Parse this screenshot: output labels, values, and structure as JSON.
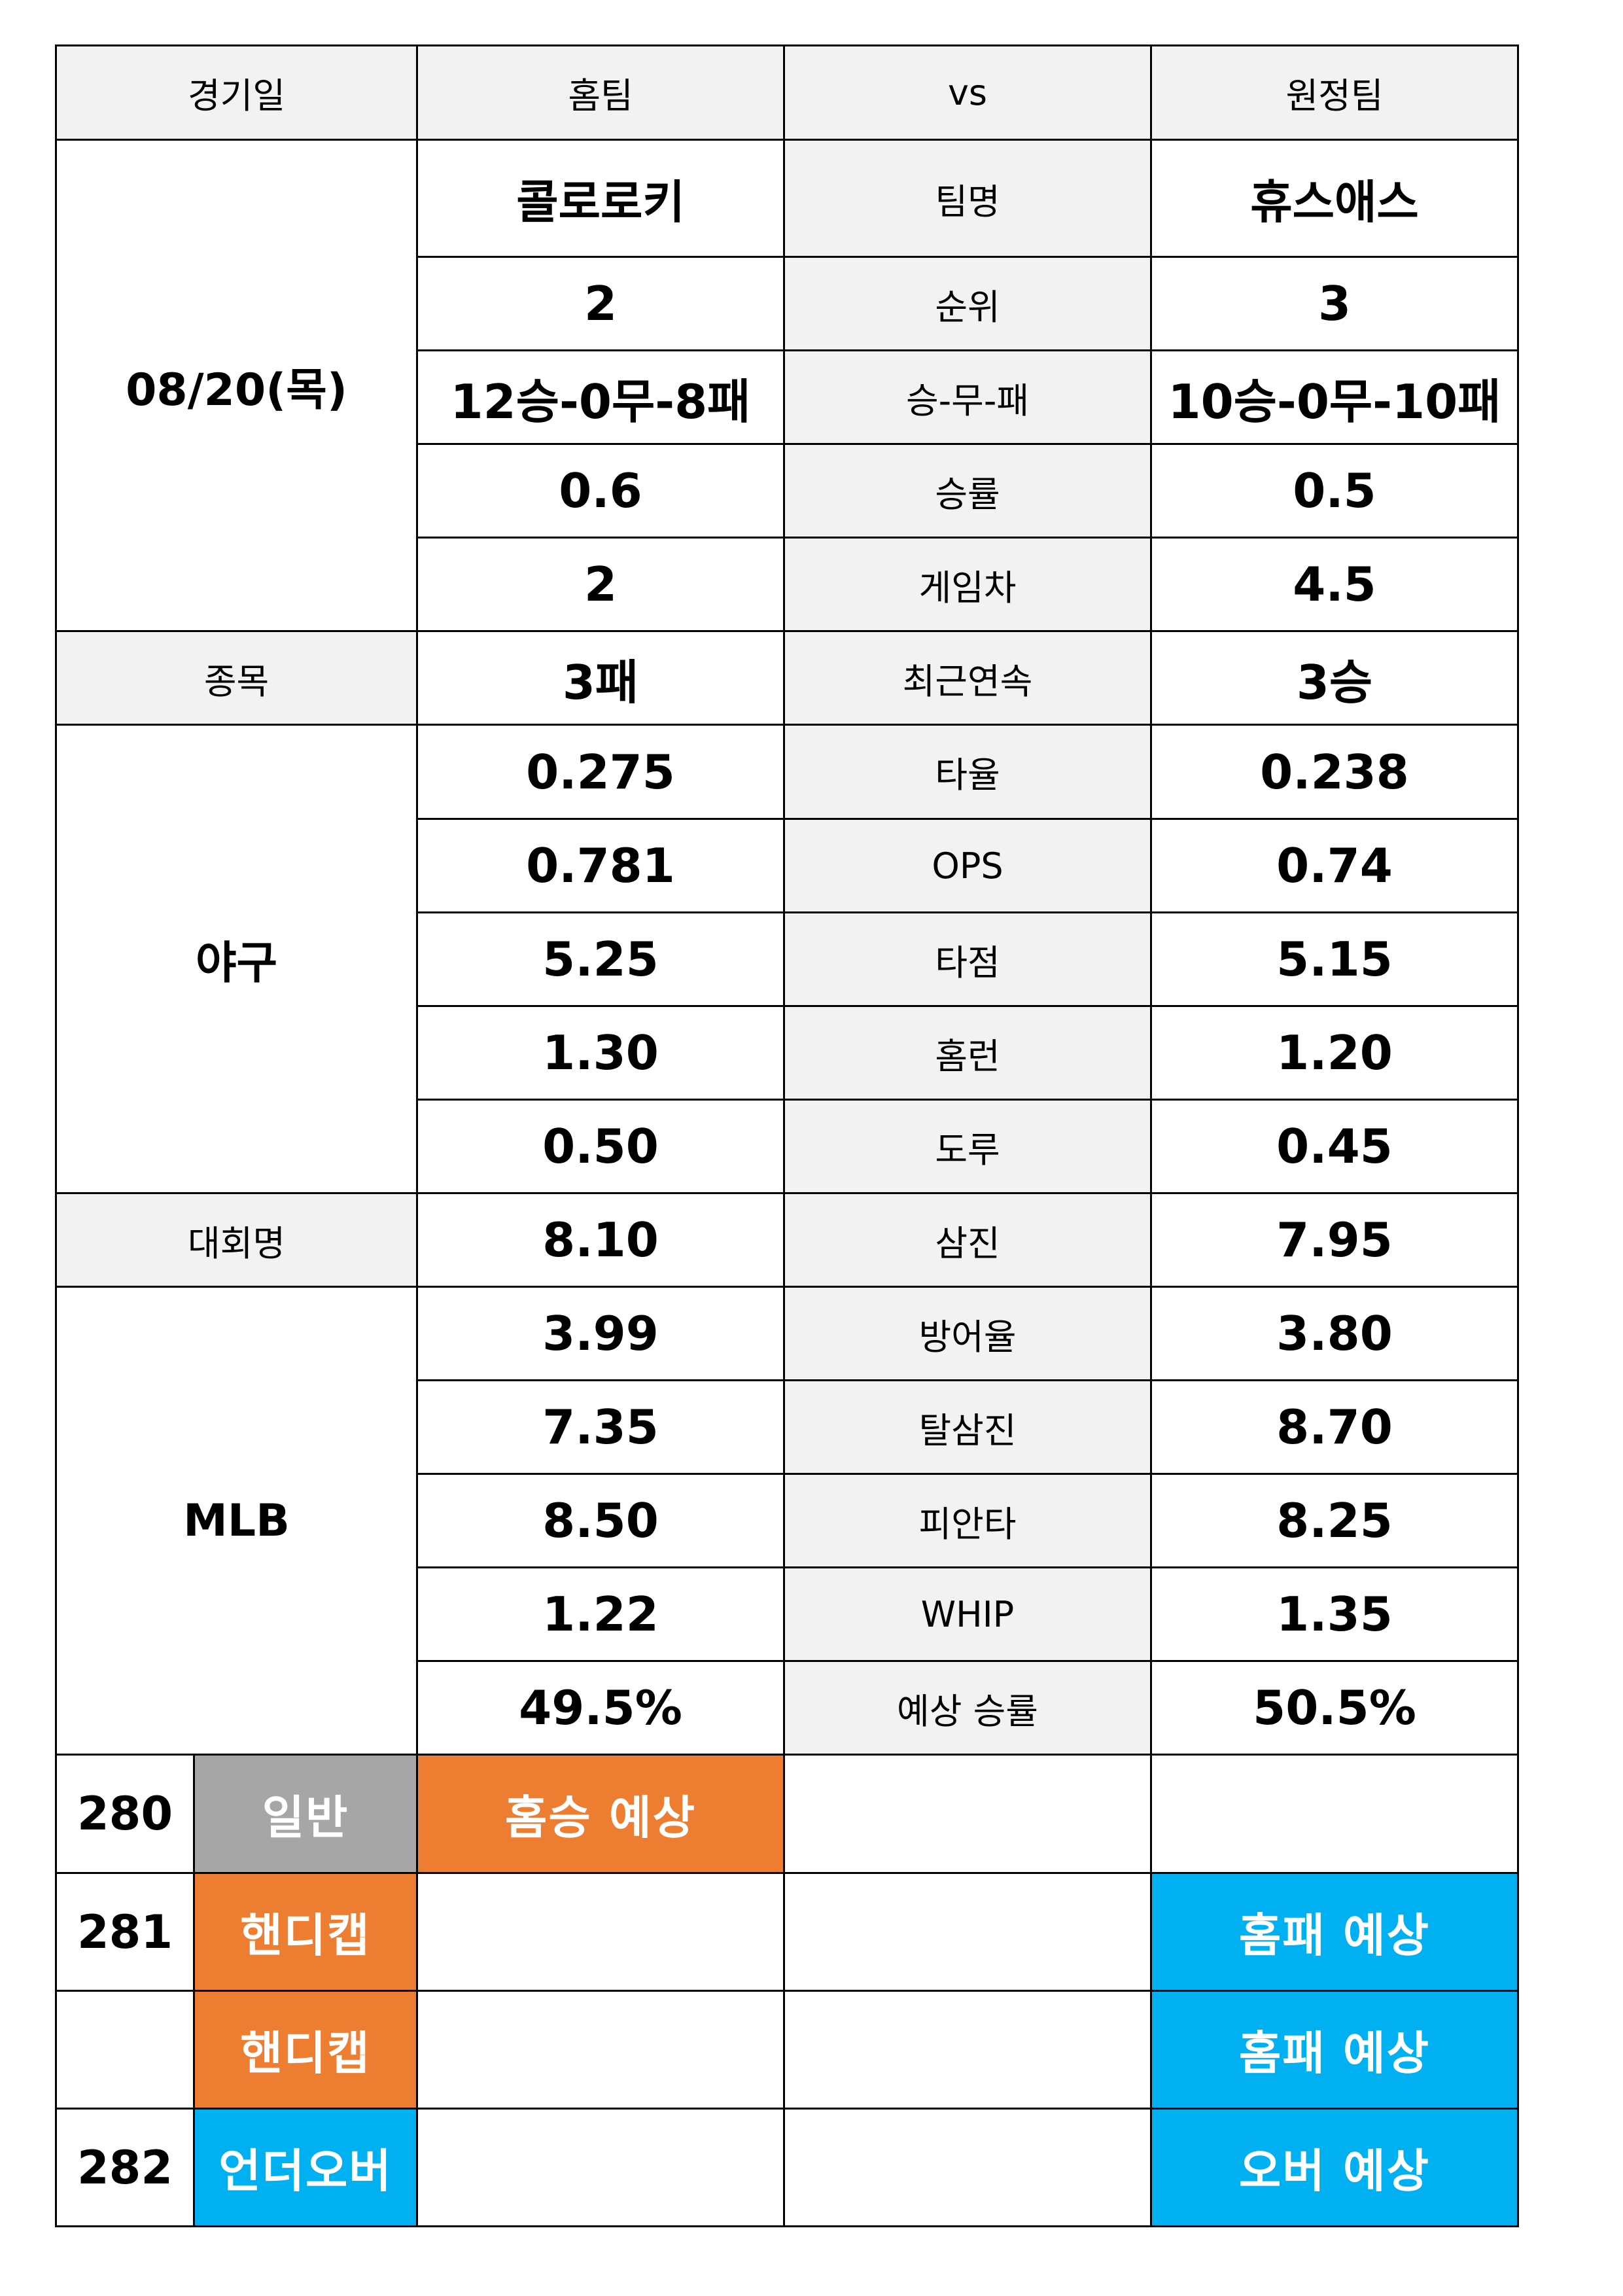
{
  "header": {
    "date_label": "경기일",
    "home_label": "홈팀",
    "vs_label": "vs",
    "away_label": "원정팀"
  },
  "match": {
    "date": "08/20(목)",
    "sport_label": "종목",
    "sport": "야구",
    "league_label": "대회명",
    "league": "MLB"
  },
  "stats": [
    {
      "label": "팀명",
      "home": "콜로로키",
      "away": "휴스애스"
    },
    {
      "label": "순위",
      "home": "2",
      "away": "3"
    },
    {
      "label": "승-무-패",
      "home": "12승-0무-8패",
      "away": "10승-0무-10패"
    },
    {
      "label": "승률",
      "home": "0.6",
      "away": "0.5"
    },
    {
      "label": "게임차",
      "home": "2",
      "away": "4.5"
    },
    {
      "label": "최근연속",
      "home": "3패",
      "away": "3승"
    },
    {
      "label": "타율",
      "home": "0.275",
      "away": "0.238"
    },
    {
      "label": "OPS",
      "home": "0.781",
      "away": "0.74"
    },
    {
      "label": "타점",
      "home": "5.25",
      "away": "5.15"
    },
    {
      "label": "홈런",
      "home": "1.30",
      "away": "1.20"
    },
    {
      "label": "도루",
      "home": "0.50",
      "away": "0.45"
    },
    {
      "label": "삼진",
      "home": "8.10",
      "away": "7.95"
    },
    {
      "label": "방어율",
      "home": "3.99",
      "away": "3.80"
    },
    {
      "label": "탈삼진",
      "home": "7.35",
      "away": "8.70"
    },
    {
      "label": "피안타",
      "home": "8.50",
      "away": "8.25"
    },
    {
      "label": "WHIP",
      "home": "1.22",
      "away": "1.35"
    },
    {
      "label": "예상 승률",
      "home": "49.5%",
      "away": "50.5%"
    }
  ],
  "picks": [
    {
      "number": "280",
      "type": "일반",
      "home_pick": "홈승 예상",
      "away_pick": ""
    },
    {
      "number": "281",
      "type": "핸디캡",
      "home_pick": "",
      "away_pick": "홈패 예상"
    },
    {
      "number": "",
      "type": "핸디캡",
      "home_pick": "",
      "away_pick": "홈패 예상"
    },
    {
      "number": "282",
      "type": "언더오버",
      "home_pick": "",
      "away_pick": "오버 예상"
    }
  ],
  "colors": {
    "header_gray": "#f2f2f2",
    "general_gray": "#a6a6a6",
    "orange": "#ed7d31",
    "blue": "#00b0f0"
  }
}
